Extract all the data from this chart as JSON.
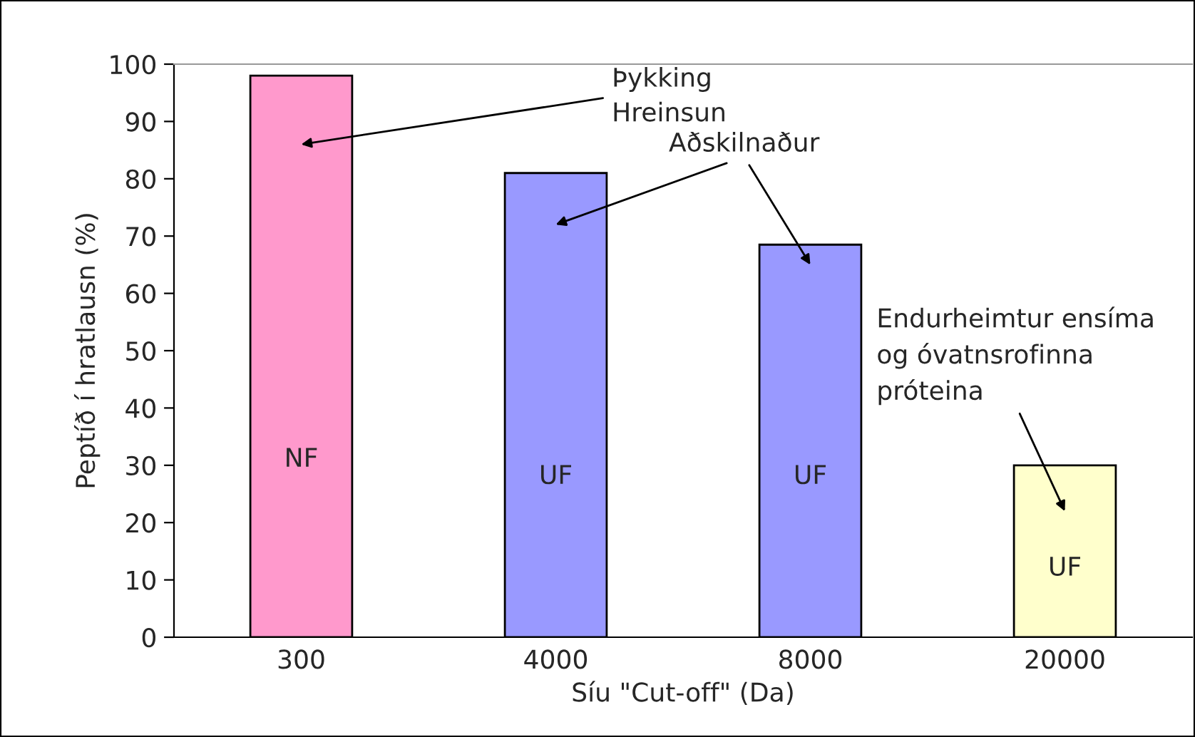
{
  "chart_data": {
    "type": "bar",
    "xlabel": "Síu \"Cut-off\" (Da)",
    "ylabel": "Peptíð í hratlausn (%)",
    "categories": [
      "300",
      "4000",
      "8000",
      "20000"
    ],
    "values": [
      98,
      81,
      68.5,
      30
    ],
    "colors": [
      "#ff99cc",
      "#9999ff",
      "#9999ff",
      "#ffffcc"
    ],
    "ylim": [
      0,
      100
    ],
    "yticks": [
      0,
      10,
      20,
      30,
      40,
      50,
      60,
      70,
      80,
      90,
      100
    ],
    "annotations": [
      "Þykking\nHreinsun",
      "Aðskilnaður",
      "Endurheimtur ensíma\nog óvatnsrofinna\npróteina",
      "NF",
      "UF",
      "UF",
      "UF"
    ]
  }
}
